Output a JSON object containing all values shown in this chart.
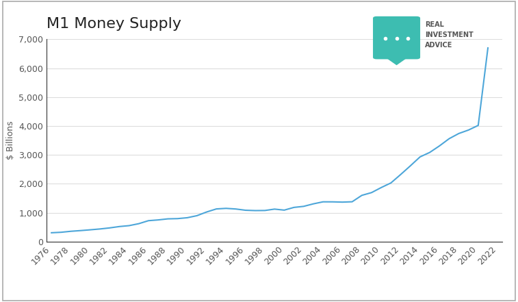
{
  "title": "M1 Money Supply",
  "ylabel": "$ Billions",
  "line_color": "#4da6d9",
  "background_color": "#ffffff",
  "plot_bg_color": "#ffffff",
  "border_color": "#aaaaaa",
  "grid_color": "#dddddd",
  "ylim": [
    0,
    7000
  ],
  "yticks": [
    0,
    1000,
    2000,
    3000,
    4000,
    5000,
    6000,
    7000
  ],
  "xlim": [
    1975.5,
    2022.5
  ],
  "years": [
    1976,
    1977,
    1978,
    1979,
    1980,
    1981,
    1982,
    1983,
    1984,
    1985,
    1986,
    1987,
    1988,
    1989,
    1990,
    1991,
    1992,
    1993,
    1994,
    1995,
    1996,
    1997,
    1998,
    1999,
    2000,
    2001,
    2002,
    2003,
    2004,
    2005,
    2006,
    2007,
    2008,
    2009,
    2010,
    2011,
    2012,
    2013,
    2014,
    2015,
    2016,
    2017,
    2018,
    2019,
    2020,
    2021
  ],
  "values": [
    306,
    323,
    357,
    381,
    408,
    437,
    474,
    521,
    552,
    620,
    724,
    750,
    787,
    795,
    826,
    897,
    1025,
    1130,
    1150,
    1128,
    1085,
    1073,
    1076,
    1124,
    1089,
    1183,
    1219,
    1306,
    1376,
    1375,
    1366,
    1378,
    1600,
    1695,
    1870,
    2030,
    2320,
    2620,
    2930,
    3085,
    3310,
    3560,
    3740,
    3860,
    4020,
    6700
  ],
  "xtick_years": [
    1976,
    1978,
    1980,
    1982,
    1984,
    1986,
    1988,
    1990,
    1992,
    1994,
    1996,
    1998,
    2000,
    2002,
    2004,
    2006,
    2008,
    2010,
    2012,
    2014,
    2016,
    2018,
    2020,
    2022
  ],
  "title_fontsize": 16,
  "tick_fontsize": 9,
  "ylabel_fontsize": 9,
  "logo_shield_color": "#3dbdb1",
  "logo_text_color": "#555555",
  "logo_line1": "REAL",
  "logo_line2": "INVESTMENT",
  "logo_line3": "ADVICE"
}
